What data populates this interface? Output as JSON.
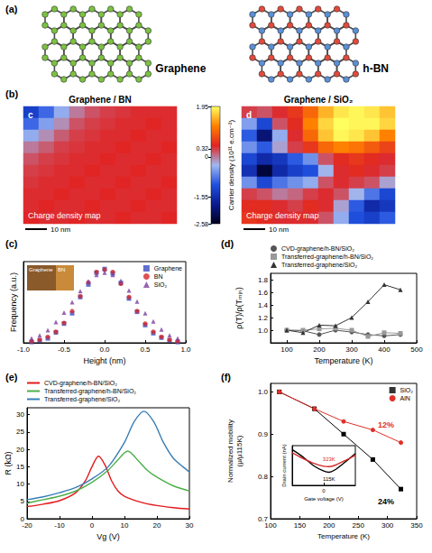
{
  "diagram": {
    "panel": "(a)",
    "lattices": [
      {
        "label": "Graphene",
        "colors": [
          "#7cc242"
        ]
      },
      {
        "label": "h-BN",
        "colors": [
          "#e04b3c",
          "#5b8fd6"
        ]
      }
    ]
  },
  "chart_data": [
    {
      "panel": "(b)",
      "type": "heatmap",
      "maps": [
        {
          "title": "Graphene / BN",
          "inner_label": "c",
          "caption": "Charge density map",
          "scale_bar": "10 nm",
          "cells": [
            [
              -1.3,
              -0.9,
              -0.4,
              0.0,
              0.2,
              0.3,
              0.35,
              0.4,
              0.4,
              0.4
            ],
            [
              -0.9,
              -0.5,
              -0.1,
              0.2,
              0.3,
              0.35,
              0.4,
              0.4,
              0.45,
              0.4
            ],
            [
              -0.4,
              -0.1,
              0.15,
              0.3,
              0.35,
              0.4,
              0.4,
              0.45,
              0.4,
              0.4
            ],
            [
              0.0,
              0.15,
              0.3,
              0.35,
              0.4,
              0.4,
              0.45,
              0.4,
              0.4,
              0.45
            ],
            [
              0.2,
              0.3,
              0.35,
              0.4,
              0.4,
              0.45,
              0.4,
              0.4,
              0.45,
              0.4
            ],
            [
              0.3,
              0.35,
              0.4,
              0.4,
              0.45,
              0.4,
              0.4,
              0.45,
              0.4,
              0.4
            ],
            [
              0.35,
              0.4,
              0.4,
              0.45,
              0.4,
              0.4,
              0.45,
              0.4,
              0.4,
              0.45
            ],
            [
              0.4,
              0.4,
              0.45,
              0.4,
              0.4,
              0.45,
              0.4,
              0.4,
              0.45,
              0.4
            ],
            [
              0.4,
              0.45,
              0.4,
              0.4,
              0.45,
              0.4,
              0.4,
              0.45,
              0.4,
              0.4
            ],
            [
              0.45,
              0.4,
              0.4,
              0.45,
              0.4,
              0.4,
              0.45,
              0.4,
              0.4,
              0.45
            ]
          ]
        },
        {
          "title": "Graphene / SiO₂",
          "inner_label": "d",
          "caption": "Charge density map",
          "scale_bar": "10 nm",
          "cells": [
            [
              0.3,
              0.2,
              0.4,
              0.6,
              1.0,
              1.5,
              1.8,
              1.9,
              1.8,
              1.6
            ],
            [
              -0.5,
              -1.2,
              0.2,
              0.5,
              1.2,
              1.7,
              1.95,
              1.9,
              1.9,
              1.7
            ],
            [
              -1.0,
              -2.0,
              -0.4,
              0.4,
              1.0,
              1.6,
              1.9,
              1.8,
              1.6,
              1.2
            ],
            [
              -0.6,
              -1.0,
              -0.2,
              0.3,
              0.6,
              1.0,
              1.2,
              1.1,
              0.9,
              0.7
            ],
            [
              -1.2,
              -1.6,
              -1.4,
              -1.0,
              -0.6,
              0.2,
              0.5,
              0.6,
              0.5,
              0.4
            ],
            [
              -1.5,
              -2.4,
              -1.6,
              -1.3,
              -1.1,
              -0.3,
              0.4,
              0.5,
              0.4,
              0.3
            ],
            [
              -0.6,
              -1.2,
              -0.8,
              -0.6,
              -0.4,
              0.2,
              0.4,
              0.3,
              0.2,
              -0.2
            ],
            [
              0.3,
              0.2,
              0.0,
              0.1,
              0.3,
              0.4,
              0.2,
              -0.3,
              -0.8,
              -1.2
            ],
            [
              0.5,
              0.5,
              0.4,
              0.3,
              0.5,
              0.4,
              -0.2,
              -1.0,
              -1.6,
              -1.4
            ],
            [
              0.6,
              0.5,
              0.4,
              0.4,
              0.4,
              0.2,
              -0.4,
              -1.1,
              -1.3,
              -1.0
            ]
          ]
        }
      ],
      "colorbar": {
        "title": "Carrier density (10¹¹ e.cm⁻²)",
        "range": [
          -2.58,
          1.95
        ],
        "ticks": [
          1.95,
          0.32,
          0,
          -1.55,
          -2.58
        ],
        "colors": [
          "#000020",
          "#0a1a90",
          "#2050e0",
          "#a0b8f0",
          "#e02424",
          "#ff8000",
          "#ffff60"
        ]
      }
    },
    {
      "panel": "(c)",
      "type": "scatter",
      "x_label": "Height (nm)",
      "y_label": "Frequency (a.u.)",
      "xlim": [
        -1.0,
        1.0
      ],
      "xticks": [
        {
          "value": -1,
          "label": "-1.0"
        },
        -0.5,
        {
          "value": 0,
          "label": "0.0"
        },
        0.5,
        {
          "value": 1,
          "label": "1.0"
        }
      ],
      "ylim": [
        0,
        1.1
      ],
      "tick_labels": "x",
      "legend": "upper right",
      "x": [
        -0.9,
        -0.8,
        -0.7,
        -0.6,
        -0.5,
        -0.4,
        -0.3,
        -0.2,
        -0.1,
        0,
        0.1,
        0.2,
        0.3,
        0.4,
        0.5,
        0.6,
        0.7,
        0.8,
        0.9
      ],
      "series": [
        {
          "name": "Graphene",
          "color": "#3b4cc0",
          "marker": "square",
          "values": [
            0.01,
            0.03,
            0.06,
            0.14,
            0.26,
            0.4,
            0.62,
            0.79,
            0.95,
            1.0,
            0.94,
            0.81,
            0.6,
            0.42,
            0.24,
            0.13,
            0.07,
            0.03,
            0.01
          ]
        },
        {
          "name": "BN",
          "color": "#d62728",
          "marker": "circle",
          "values": [
            0.02,
            0.04,
            0.08,
            0.15,
            0.27,
            0.43,
            0.63,
            0.82,
            0.96,
            0.99,
            0.96,
            0.8,
            0.62,
            0.43,
            0.26,
            0.15,
            0.08,
            0.04,
            0.02
          ]
        },
        {
          "name": "SiO₂",
          "color": "#7b3fa0",
          "marker": "triangle",
          "values": [
            0.06,
            0.1,
            0.17,
            0.28,
            0.41,
            0.55,
            0.7,
            0.83,
            0.92,
            0.95,
            0.92,
            0.84,
            0.71,
            0.56,
            0.4,
            0.29,
            0.18,
            0.1,
            0.06
          ]
        }
      ],
      "inset": {
        "labels": [
          "Graphene",
          "BN"
        ],
        "colors": [
          "#8a5a2b",
          "#c98a3a"
        ]
      }
    },
    {
      "panel": "(d)",
      "type": "line",
      "x_label": "Temperature (K)",
      "y_label": "ρ(T)/ρ(Tₘᵢₙ)",
      "xlim": [
        50,
        500
      ],
      "xticks": [
        100,
        200,
        300,
        400,
        500
      ],
      "ylim": [
        0.8,
        1.9
      ],
      "yticks": [
        {
          "value": 1,
          "label": "1.0"
        },
        1.2,
        1.4,
        1.6,
        1.8
      ],
      "legend": "top",
      "x": [
        100,
        150,
        200,
        250,
        300,
        350,
        400,
        450
      ],
      "series": [
        {
          "name": "CVD-graphene/h-BN/SiO₂",
          "color": "#555555",
          "marker": "circle",
          "values": [
            1.0,
            0.99,
            0.93,
            1.0,
            0.97,
            0.93,
            0.91,
            0.93
          ]
        },
        {
          "name": "Transferred-graphene/h-BN/SiO₂",
          "color": "#999999",
          "marker": "square",
          "values": [
            1.0,
            1.0,
            1.02,
            1.03,
            1.0,
            0.9,
            0.96,
            0.95
          ]
        },
        {
          "name": "Transferred-graphene/SiO₂",
          "color": "#333333",
          "marker": "triangle",
          "values": [
            1.0,
            0.96,
            1.08,
            1.07,
            1.2,
            1.45,
            1.72,
            1.64
          ]
        }
      ]
    },
    {
      "panel": "(e)",
      "type": "line",
      "x_label": "Vg (V)",
      "y_label": "R (kΩ)",
      "xlim": [
        -20,
        30
      ],
      "xticks": [
        -20,
        -10,
        0,
        10,
        20,
        30
      ],
      "ylim": [
        0,
        32
      ],
      "yticks": [
        0,
        5,
        10,
        15,
        20,
        25,
        30
      ],
      "legend": "top",
      "series": [
        {
          "name": "CVD-graphene/h-BN/SiO₂",
          "color": "#e41a1c",
          "x": [
            -20,
            -15,
            -10,
            -5,
            -2,
            0,
            2,
            4,
            6,
            8,
            10,
            15,
            20,
            25,
            30
          ],
          "values": [
            3.5,
            4.2,
            5.2,
            7.5,
            11,
            15,
            18,
            15.5,
            11,
            8,
            6.5,
            4.8,
            3.8,
            3.2,
            2.8
          ]
        },
        {
          "name": "Transferred-graphene/h-BN/SiO₂",
          "color": "#4daf4a",
          "x": [
            -20,
            -15,
            -10,
            -5,
            0,
            5,
            8,
            11,
            14,
            17,
            20,
            25,
            30
          ],
          "values": [
            4.5,
            5.5,
            6.5,
            8,
            10.5,
            14,
            17,
            19.5,
            17,
            14,
            12,
            9.5,
            8
          ]
        },
        {
          "name": "Transferred-graphene/SiO₂",
          "color": "#377eb8",
          "x": [
            -20,
            -15,
            -10,
            -5,
            0,
            5,
            10,
            13,
            16,
            19,
            22,
            25,
            28,
            30
          ],
          "values": [
            5.5,
            6.3,
            7.5,
            9,
            11.5,
            15,
            22,
            28,
            31,
            28,
            22,
            17.5,
            15,
            13.5
          ]
        }
      ]
    },
    {
      "panel": "(f)",
      "type": "line",
      "x_label": "Temperature (K)",
      "y_label": "Normalized mobility (μ/μ115K)",
      "xlim": [
        100,
        350
      ],
      "xticks": [
        100,
        150,
        200,
        250,
        300,
        350
      ],
      "ylim": [
        0.7,
        1.02
      ],
      "yticks": [
        0.7,
        0.8,
        0.9,
        {
          "value": 1,
          "label": "1.0"
        }
      ],
      "legend": "upper right",
      "x": [
        115,
        175,
        225,
        275,
        323
      ],
      "series": [
        {
          "name": "SiO₂",
          "color": "#000000",
          "marker": "square",
          "values": [
            1.0,
            0.96,
            0.9,
            0.84,
            0.77
          ]
        },
        {
          "name": "AlN",
          "color": "#e0302a",
          "marker": "circle",
          "values": [
            1.0,
            0.96,
            0.93,
            0.91,
            0.88
          ]
        }
      ],
      "annotations": [
        {
          "text": "24%",
          "series": "SiO₂"
        },
        {
          "text": "12%",
          "series": "AlN"
        }
      ],
      "inset": {
        "type": "line",
        "x_label": "Gate voltage (V)",
        "y_label": "Drain current (nA)",
        "xlim": [
          -30,
          30
        ],
        "xticks": [
          0
        ],
        "ylim": [
          0,
          10
        ],
        "tick_labels": "x",
        "x": [
          -30,
          -20,
          -10,
          0,
          5,
          10,
          20,
          30
        ],
        "series": [
          {
            "name": "115K",
            "color": "#000000",
            "values": [
              9,
              7.2,
              5,
              3.6,
              3.3,
              3.8,
              5.8,
              8
            ]
          },
          {
            "name": "323K",
            "color": "#d62728",
            "values": [
              8.2,
              6.8,
              5.6,
              4.8,
              4.7,
              5,
              6.2,
              7.6
            ]
          }
        ]
      }
    }
  ]
}
